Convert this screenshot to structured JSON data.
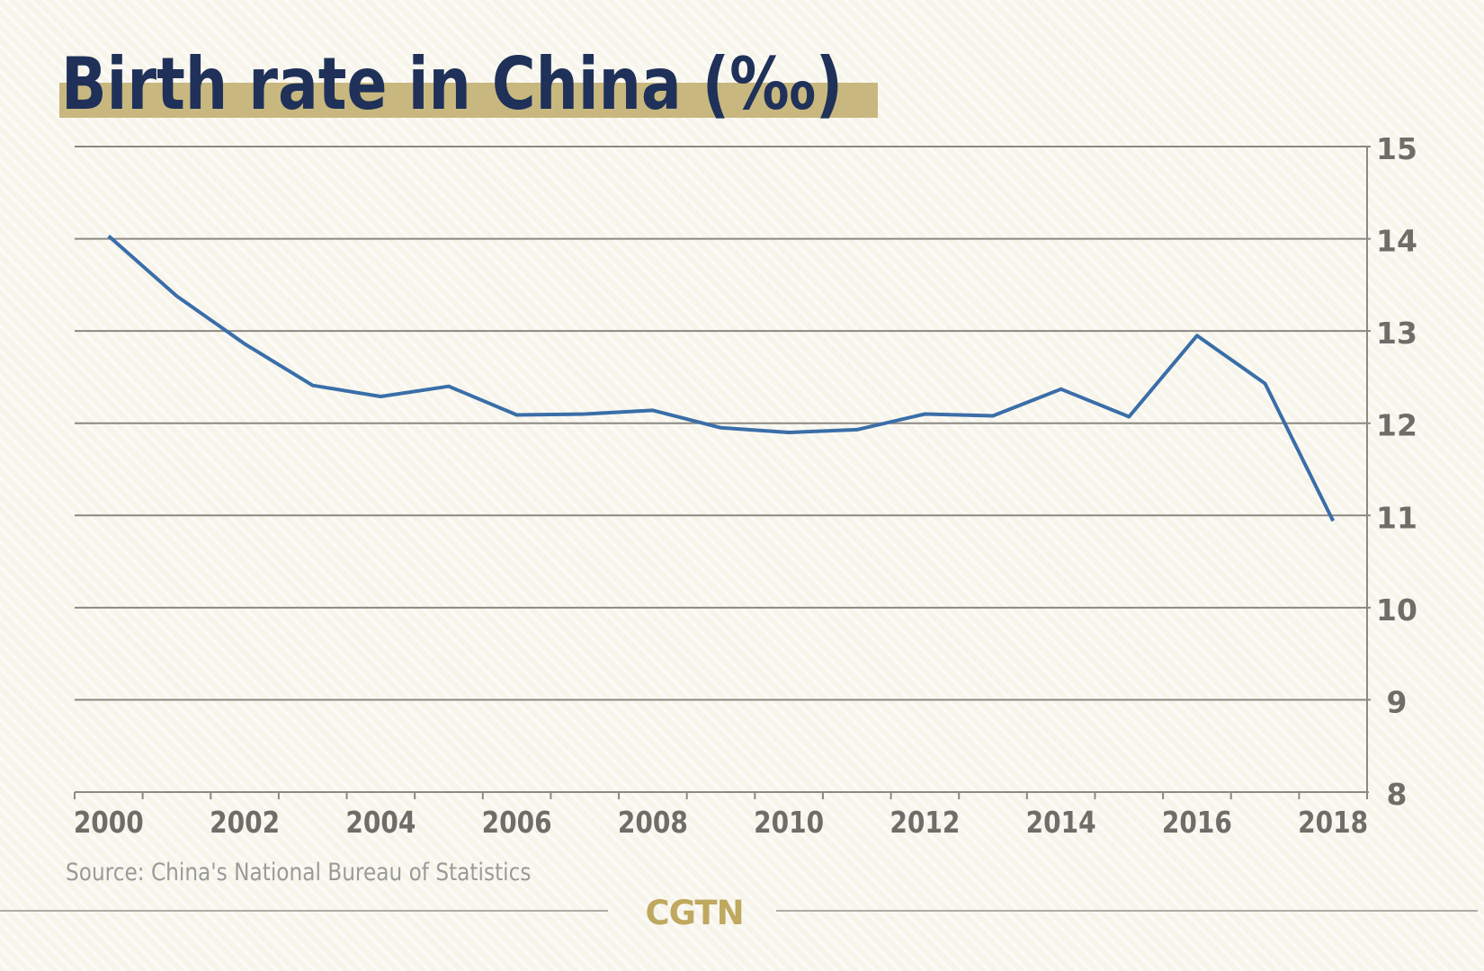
{
  "chart_data": {
    "type": "line",
    "title": "Birth rate in China (‰)",
    "xlabel": "",
    "ylabel": "",
    "x": [
      2000,
      2001,
      2002,
      2003,
      2004,
      2005,
      2006,
      2007,
      2008,
      2009,
      2010,
      2011,
      2012,
      2013,
      2014,
      2015,
      2016,
      2017,
      2018
    ],
    "series": [
      {
        "name": "Birth rate",
        "values": [
          14.03,
          13.38,
          12.86,
          12.41,
          12.29,
          12.4,
          12.09,
          12.1,
          12.14,
          11.95,
          11.9,
          11.93,
          12.1,
          12.08,
          12.37,
          12.07,
          12.95,
          12.43,
          10.94
        ],
        "color": "#3a6ea8"
      }
    ],
    "x_tick_labels": [
      "2000",
      "2002",
      "2004",
      "2006",
      "2008",
      "2010",
      "2012",
      "2014",
      "2016",
      "2018"
    ],
    "y_tick_labels": [
      "8",
      "9",
      "10",
      "11",
      "12",
      "13",
      "14",
      "15"
    ],
    "ylim": [
      8,
      15
    ],
    "y_axis_side": "right",
    "grid": true
  },
  "title": "Birth rate in China (‰)",
  "source": "Source: China's National Bureau of Statistics",
  "logo": "CGTN",
  "colors": {
    "background": "#f7f4ea",
    "title_text": "#1f3159",
    "title_highlight": "#c8b87f",
    "line": "#3a6ea8",
    "grid": "#8a8984",
    "axis_labels": "#6e6d68",
    "source_text": "#9a9b98",
    "logo": "#bfa85f"
  }
}
